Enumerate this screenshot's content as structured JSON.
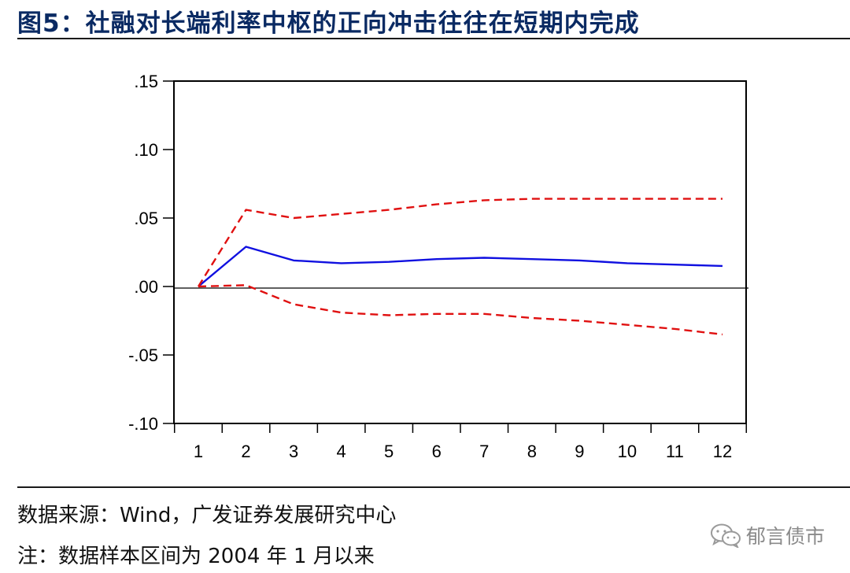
{
  "header": {
    "title": "图5：社融对长端利率中枢的正向冲击往往在短期内完成"
  },
  "footer": {
    "source": "数据来源：Wind，广发证券发展研究中心",
    "note": "注：数据样本区间为 2004 年 1 月以来"
  },
  "watermark": {
    "label": "郁言债市",
    "icon": "wechat-icon"
  },
  "colors": {
    "title": "#0a2a63",
    "response": "#1010e0",
    "band": "#e01010",
    "axis": "#000000"
  },
  "chart_data": {
    "type": "line",
    "title": "",
    "xlabel": "",
    "ylabel": "",
    "x": [
      1,
      2,
      3,
      4,
      5,
      6,
      7,
      8,
      9,
      10,
      11,
      12
    ],
    "xticks": [
      "1",
      "2",
      "3",
      "4",
      "5",
      "6",
      "7",
      "8",
      "9",
      "10",
      "11",
      "12"
    ],
    "ylim": [
      -0.1,
      0.15
    ],
    "yticks": [
      0.15,
      0.1,
      0.05,
      0.0,
      -0.05,
      -0.1
    ],
    "ytick_labels": [
      ".15",
      ".10",
      ".05",
      ".00",
      "-.05",
      "-.10"
    ],
    "zero_line": true,
    "series": [
      {
        "name": "impulse-response",
        "style": "solid",
        "color": "#1010e0",
        "values": [
          0.0,
          0.029,
          0.019,
          0.017,
          0.018,
          0.02,
          0.021,
          0.02,
          0.019,
          0.017,
          0.016,
          0.015
        ]
      },
      {
        "name": "upper-band",
        "style": "dashed",
        "color": "#e01010",
        "values": [
          0.0,
          0.056,
          0.05,
          0.053,
          0.056,
          0.06,
          0.063,
          0.064,
          0.064,
          0.064,
          0.064,
          0.064
        ]
      },
      {
        "name": "lower-band",
        "style": "dashed",
        "color": "#e01010",
        "values": [
          0.0,
          0.001,
          -0.013,
          -0.019,
          -0.021,
          -0.02,
          -0.02,
          -0.023,
          -0.025,
          -0.028,
          -0.031,
          -0.035
        ]
      }
    ]
  }
}
